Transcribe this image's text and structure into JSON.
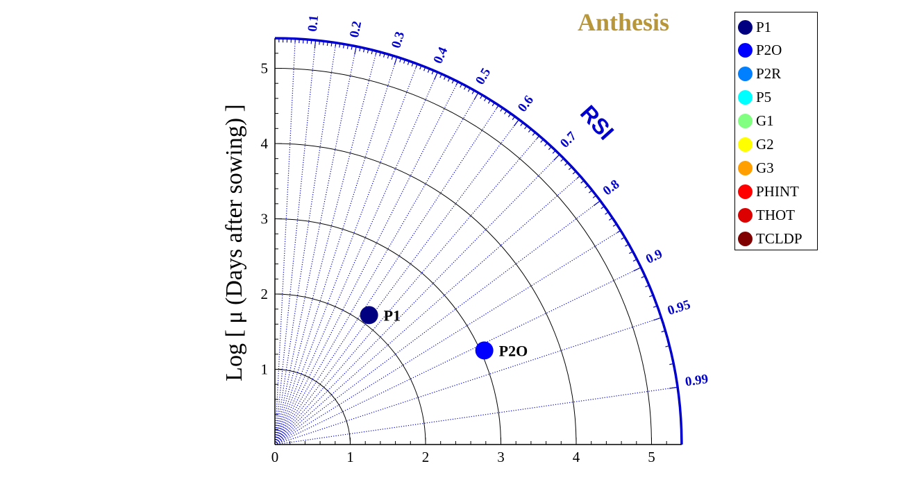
{
  "chart_data": {
    "type": "scatter",
    "subtype": "polar-quadrant (Taylor-like)",
    "title": "Anthesis",
    "ylabel": "Log [ μ (Days after sowing) ]",
    "angular_axis_label": "RSI",
    "radial_max": 5.4,
    "x_ticks": [
      0,
      1,
      2,
      3,
      4,
      5
    ],
    "y_ticks": [
      1,
      2,
      3,
      4,
      5
    ],
    "circle_radii": [
      1,
      2,
      3,
      4,
      5
    ],
    "angular_ticks": [
      0.1,
      0.2,
      0.3,
      0.4,
      0.5,
      0.6,
      0.7,
      0.8,
      0.9,
      0.95,
      0.99
    ],
    "grid": true,
    "legend_position": "top-right outside",
    "points": [
      {
        "name": "P1",
        "x": 1.25,
        "y": 1.72
      },
      {
        "name": "P2O",
        "x": 2.78,
        "y": 1.25
      }
    ],
    "legend": [
      {
        "name": "P1",
        "color": "#000080"
      },
      {
        "name": "P2O",
        "color": "#0000ff"
      },
      {
        "name": "P2R",
        "color": "#0080ff"
      },
      {
        "name": "P5",
        "color": "#00ffff"
      },
      {
        "name": "G1",
        "color": "#80ff80"
      },
      {
        "name": "G2",
        "color": "#ffff00"
      },
      {
        "name": "G3",
        "color": "#ffa000"
      },
      {
        "name": "PHINT",
        "color": "#ff0000"
      },
      {
        "name": "THOT",
        "color": "#dd0000"
      },
      {
        "name": "TCLDP",
        "color": "#800000"
      }
    ],
    "colors": {
      "title": "#b8963a",
      "axis_arc": "#0000cc",
      "angular_labels": "#0000cc"
    }
  }
}
